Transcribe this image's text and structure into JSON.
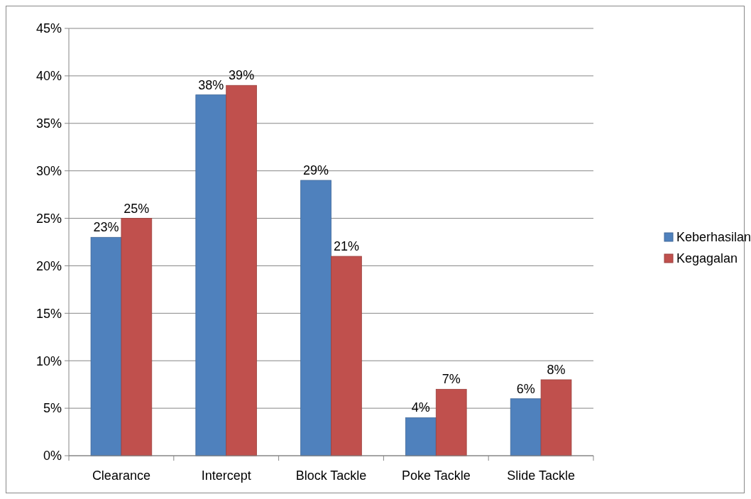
{
  "chart_data": {
    "type": "bar",
    "categories": [
      "Clearance",
      "Intercept",
      "Block Tackle",
      "Poke Tackle",
      "Slide Tackle"
    ],
    "series": [
      {
        "name": "Keberhasilan",
        "color": "#4f81bd",
        "values": [
          23,
          38,
          29,
          4,
          6
        ],
        "value_labels": [
          "23%",
          "38%",
          "29%",
          "4%",
          "6%"
        ]
      },
      {
        "name": "Kegagalan",
        "color": "#c0504d",
        "values": [
          25,
          39,
          21,
          7,
          8
        ],
        "value_labels": [
          "25%",
          "39%",
          "21%",
          "7%",
          "8%"
        ]
      }
    ],
    "ylim": [
      0,
      45
    ],
    "yticks": [
      {
        "value": 0,
        "label": "0%"
      },
      {
        "value": 5,
        "label": "5%"
      },
      {
        "value": 10,
        "label": "10%"
      },
      {
        "value": 15,
        "label": "15%"
      },
      {
        "value": 20,
        "label": "20%"
      },
      {
        "value": 25,
        "label": "25%"
      },
      {
        "value": 30,
        "label": "30%"
      },
      {
        "value": 35,
        "label": "35%"
      },
      {
        "value": 40,
        "label": "40%"
      },
      {
        "value": 45,
        "label": "45%"
      }
    ],
    "grid": "y",
    "legend": "right"
  }
}
